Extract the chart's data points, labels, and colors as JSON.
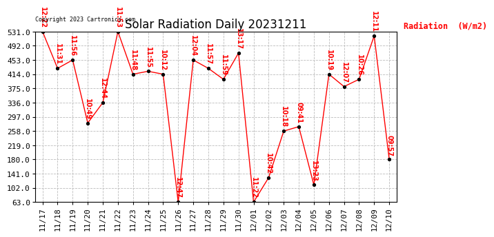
{
  "title": "Solar Radiation Daily 20231211",
  "ylabel": "Radiation  (W/m2)",
  "copyright": "Copyright 2023 Cartronics.com",
  "dates": [
    "11/17",
    "11/18",
    "11/19",
    "11/20",
    "11/21",
    "11/22",
    "11/23",
    "11/24",
    "11/25",
    "11/26",
    "11/27",
    "11/28",
    "11/29",
    "11/30",
    "12/01",
    "12/02",
    "12/03",
    "12/04",
    "12/05",
    "12/06",
    "12/07",
    "12/08",
    "12/09",
    "12/10"
  ],
  "values": [
    531.0,
    430.0,
    453.0,
    280.0,
    336.0,
    531.0,
    414.0,
    422.0,
    414.0,
    63.0,
    453.0,
    430.0,
    400.0,
    472.0,
    63.0,
    130.0,
    258.0,
    270.0,
    110.0,
    414.0,
    380.0,
    400.0,
    519.0,
    180.0
  ],
  "times": [
    "12:22",
    "11:31",
    "11:56",
    "10:49",
    "12:44",
    "11:53",
    "11:48",
    "11:55",
    "10:12",
    "12:47",
    "12:04",
    "11:57",
    "11:59",
    "13:17",
    "11:22",
    "10:42",
    "10:18",
    "09:41",
    "13:23",
    "10:19",
    "12:07",
    "10:26",
    "12:11",
    "09:57"
  ],
  "ylim": [
    63.0,
    531.0
  ],
  "yticks": [
    63.0,
    102.0,
    141.0,
    180.0,
    219.0,
    258.0,
    297.0,
    336.0,
    375.0,
    414.0,
    453.0,
    492.0,
    531.0
  ],
  "line_color": "red",
  "marker_color": "black",
  "text_color_red": "red",
  "text_color_black": "black",
  "bg_color": "white",
  "grid_color": "#bbbbbb",
  "title_fontsize": 12,
  "label_fontsize": 8.5,
  "tick_fontsize": 8,
  "annotation_fontsize": 7
}
